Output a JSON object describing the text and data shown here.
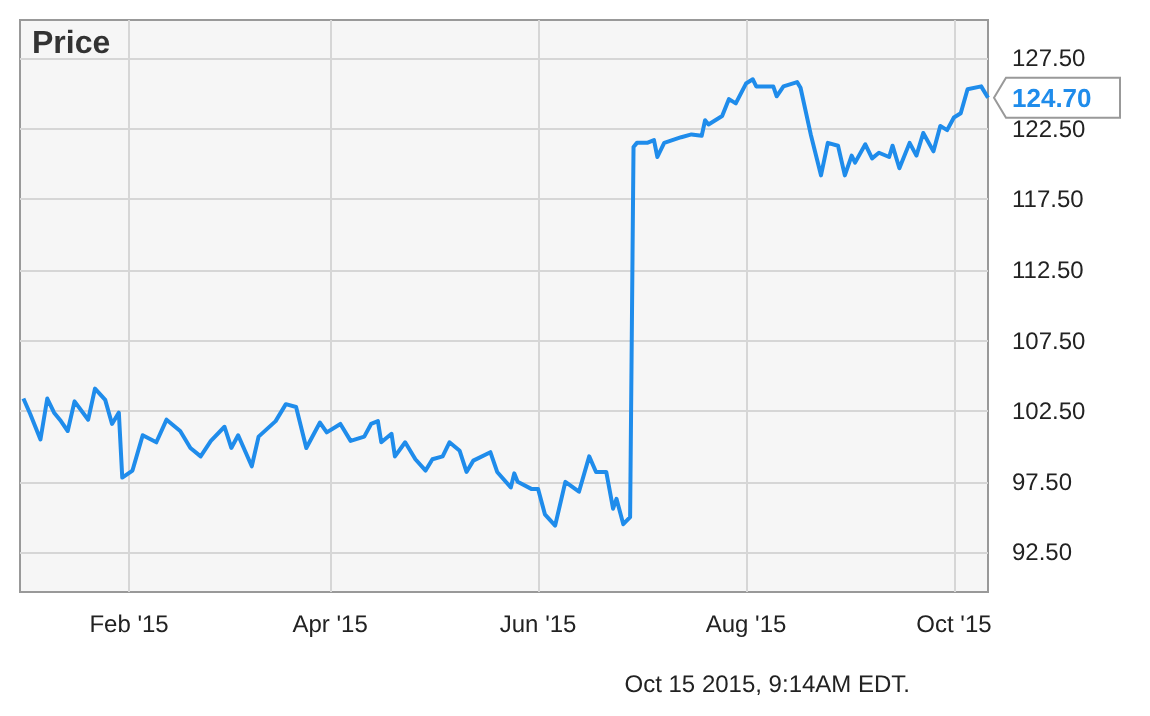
{
  "chart_data": {
    "type": "line",
    "title": "Price",
    "x": [
      "2015-01-01",
      "2015-01-03",
      "2015-01-06",
      "2015-01-08",
      "2015-01-10",
      "2015-01-12",
      "2015-01-14",
      "2015-01-16",
      "2015-01-20",
      "2015-01-22",
      "2015-01-25",
      "2015-01-27",
      "2015-01-29",
      "2015-01-30",
      "2015-02-02",
      "2015-02-05",
      "2015-02-09",
      "2015-02-12",
      "2015-02-16",
      "2015-02-19",
      "2015-02-22",
      "2015-02-25",
      "2015-03-01",
      "2015-03-03",
      "2015-03-05",
      "2015-03-09",
      "2015-03-11",
      "2015-03-16",
      "2015-03-19",
      "2015-03-22",
      "2015-03-25",
      "2015-03-29",
      "2015-03-31",
      "2015-04-04",
      "2015-04-07",
      "2015-04-11",
      "2015-04-13",
      "2015-04-15",
      "2015-04-16",
      "2015-04-19",
      "2015-04-20",
      "2015-04-23",
      "2015-04-26",
      "2015-04-29",
      "2015-05-01",
      "2015-05-04",
      "2015-05-06",
      "2015-05-09",
      "2015-05-11",
      "2015-05-13",
      "2015-05-18",
      "2015-05-20",
      "2015-05-24",
      "2015-05-25",
      "2015-05-26",
      "2015-05-30",
      "2015-06-01",
      "2015-06-03",
      "2015-06-06",
      "2015-06-09",
      "2015-06-13",
      "2015-06-16",
      "2015-06-18",
      "2015-06-21",
      "2015-06-23",
      "2015-06-24",
      "2015-06-26",
      "2015-06-28",
      "2015-06-29",
      "2015-06-30",
      "2015-07-03",
      "2015-07-05",
      "2015-07-06",
      "2015-07-08",
      "2015-07-13",
      "2015-07-16",
      "2015-07-19",
      "2015-07-20",
      "2015-07-21",
      "2015-07-25",
      "2015-07-27",
      "2015-07-29",
      "2015-08-01",
      "2015-08-03",
      "2015-08-04",
      "2015-08-06",
      "2015-08-09",
      "2015-08-10",
      "2015-08-12",
      "2015-08-16",
      "2015-08-17",
      "2015-08-20",
      "2015-08-23",
      "2015-08-25",
      "2015-08-28",
      "2015-08-30",
      "2015-09-01",
      "2015-09-02",
      "2015-09-05",
      "2015-09-07",
      "2015-09-09",
      "2015-09-12",
      "2015-09-13",
      "2015-09-15",
      "2015-09-18",
      "2015-09-20",
      "2015-09-22",
      "2015-09-25",
      "2015-09-27",
      "2015-09-29",
      "2015-10-01",
      "2015-10-03",
      "2015-10-05",
      "2015-10-09",
      "2015-10-11"
    ],
    "series": [
      {
        "color": "#1f8ceb",
        "values": [
          103.4,
          102.3,
          100.5,
          103.4,
          102.4,
          101.8,
          101.1,
          103.2,
          101.9,
          104.1,
          103.3,
          101.6,
          102.4,
          97.8,
          98.3,
          100.8,
          100.3,
          101.9,
          101.1,
          99.9,
          99.3,
          100.4,
          101.4,
          99.9,
          100.8,
          98.6,
          100.7,
          101.8,
          103.0,
          102.8,
          99.9,
          101.7,
          101.0,
          101.6,
          100.4,
          100.7,
          101.6,
          101.8,
          100.3,
          100.9,
          99.3,
          100.3,
          99.1,
          98.3,
          99.1,
          99.3,
          100.3,
          99.7,
          98.2,
          99.0,
          99.6,
          98.2,
          97.1,
          98.1,
          97.5,
          97.0,
          97.0,
          95.2,
          94.4,
          97.5,
          96.8,
          99.3,
          98.2,
          98.2,
          95.6,
          96.3,
          94.5,
          95.0,
          121.2,
          121.5,
          121.5,
          121.7,
          120.5,
          121.5,
          121.9,
          122.1,
          122.0,
          123.1,
          122.8,
          123.4,
          124.6,
          124.3,
          125.7,
          126.0,
          125.5,
          125.5,
          125.5,
          124.8,
          125.5,
          125.8,
          125.4,
          122.1,
          119.2,
          121.5,
          121.3,
          119.2,
          120.6,
          120.1,
          121.4,
          120.4,
          120.8,
          120.5,
          121.3,
          119.7,
          121.5,
          120.6,
          122.2,
          120.9,
          122.7,
          122.4,
          123.3,
          123.6,
          125.3,
          125.5,
          124.7
        ]
      }
    ],
    "xlim": [
      "2014-12-31",
      "2015-10-11"
    ],
    "xticks": [
      {
        "value": "2015-02-01",
        "label": "Feb '15"
      },
      {
        "value": "2015-04-01",
        "label": "Apr '15"
      },
      {
        "value": "2015-06-01",
        "label": "Jun '15"
      },
      {
        "value": "2015-08-01",
        "label": "Aug '15"
      },
      {
        "value": "2015-10-01",
        "label": "Oct '15"
      }
    ],
    "ylim": [
      89.7,
      130.2
    ],
    "yticks": [
      {
        "value": 92.5,
        "label": "92.50"
      },
      {
        "value": 97.5,
        "label": "97.50"
      },
      {
        "value": 102.5,
        "label": "102.50"
      },
      {
        "value": 107.5,
        "label": "107.50"
      },
      {
        "value": 112.5,
        "label": "112.50"
      },
      {
        "value": 117.5,
        "label": "117.50"
      },
      {
        "value": 122.5,
        "label": "122.50"
      },
      {
        "value": 127.5,
        "label": "127.50"
      }
    ],
    "grid": true,
    "marker": "none",
    "line_style": "solid",
    "annotations": [
      {
        "text": "124.70",
        "x": "2015-10-11",
        "y": 124.7
      },
      "Oct 15 2015, 9:14AM EDT."
    ]
  }
}
